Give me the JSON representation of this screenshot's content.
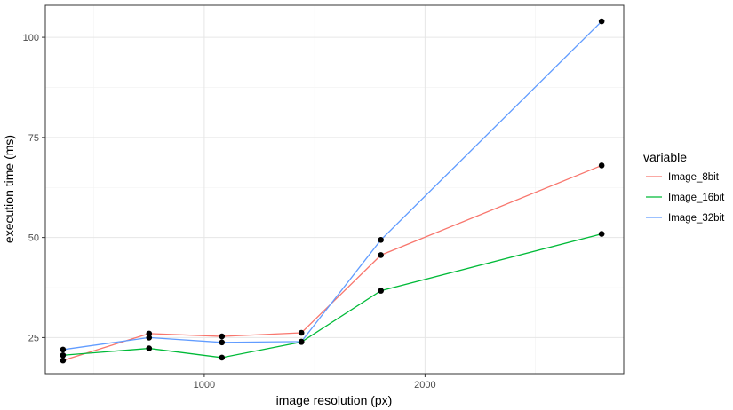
{
  "chart_data": {
    "type": "line",
    "xlabel": "image resolution (px)",
    "ylabel": "execution time (ms)",
    "x_ticks": [
      1000,
      2000
    ],
    "y_ticks": [
      25,
      50,
      75,
      100
    ],
    "xlim": [
      280,
      2900
    ],
    "ylim": [
      16,
      108
    ],
    "grid": true,
    "legend_title": "variable",
    "legend_position": "right",
    "x": [
      360,
      750,
      1080,
      1440,
      1800,
      2800
    ],
    "series": [
      {
        "name": "Image_8bit",
        "color": "#F8766D",
        "values": [
          19.3,
          26.0,
          25.3,
          26.2,
          45.6,
          68.0
        ]
      },
      {
        "name": "Image_16bit",
        "color": "#00BA38",
        "values": [
          20.6,
          22.3,
          20.0,
          23.9,
          36.7,
          50.9
        ]
      },
      {
        "name": "Image_32bit",
        "color": "#619CFF",
        "values": [
          22.0,
          25.0,
          23.8,
          24.0,
          49.4,
          104.0
        ]
      }
    ],
    "point_color": "#000000"
  }
}
